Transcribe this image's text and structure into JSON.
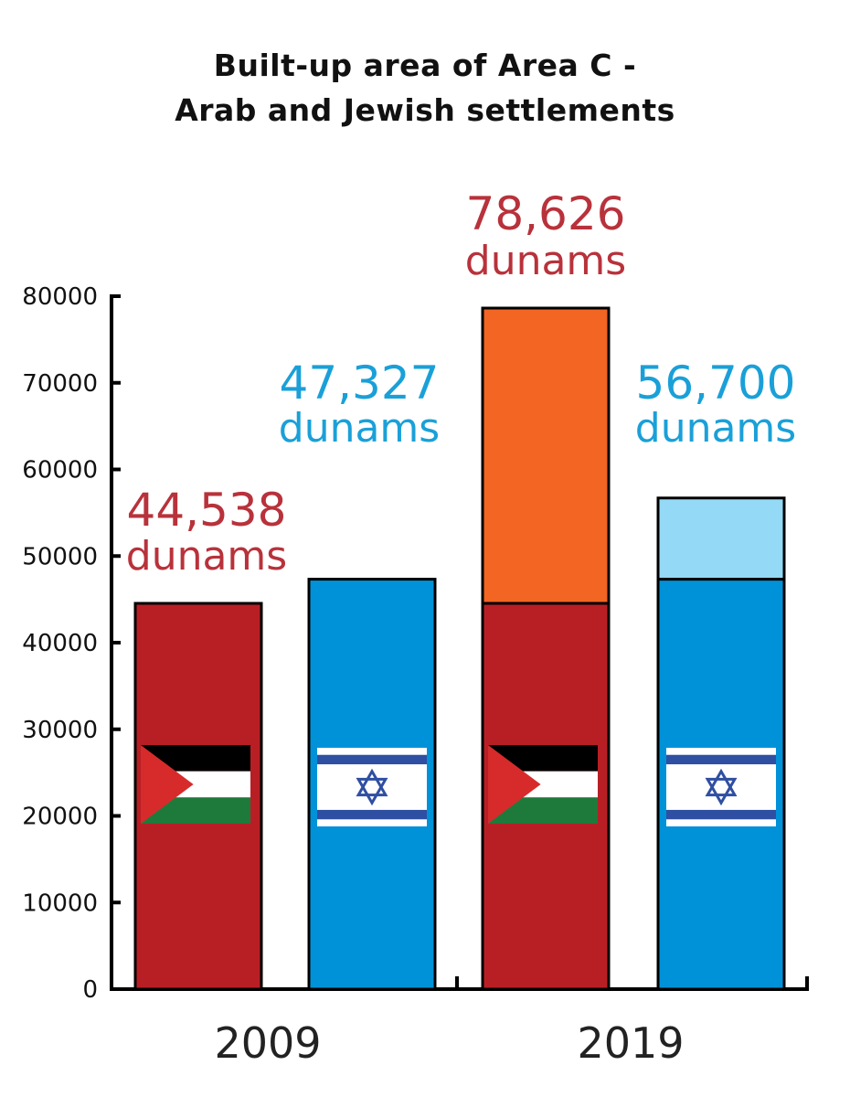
{
  "chart_data": {
    "type": "bar",
    "title_lines": [
      "Built-up area of Area C -",
      "Arab and Jewish settlements"
    ],
    "xlabel": "",
    "ylabel": "",
    "ylim": [
      0,
      80000
    ],
    "yticks": [
      0,
      10000,
      20000,
      30000,
      40000,
      50000,
      60000,
      70000,
      80000
    ],
    "ytick_labels": [
      "0",
      "10000",
      "20000",
      "30000",
      "40000",
      "50000",
      "60000",
      "70000",
      "80000"
    ],
    "categories": [
      "2009",
      "2019"
    ],
    "unit": "dunams",
    "bars": [
      {
        "group": "2009",
        "segments": [
          {
            "value": 44538,
            "color": "#b81f25"
          }
        ],
        "total": 44538,
        "value_label": "44,538",
        "label_color": "#b8323b",
        "flag": "palestine"
      },
      {
        "group": "2009",
        "segments": [
          {
            "value": 47327,
            "color": "#0092d8"
          }
        ],
        "total": 47327,
        "value_label": "47,327",
        "label_color": "#1aa0d8",
        "flag": "israel"
      },
      {
        "group": "2019",
        "segments": [
          {
            "value": 44538,
            "color": "#b81f25"
          },
          {
            "value": 34088,
            "color": "#f26522"
          }
        ],
        "total": 78626,
        "value_label": "78,626",
        "label_color": "#b8323b",
        "flag": "palestine"
      },
      {
        "group": "2019",
        "segments": [
          {
            "value": 47327,
            "color": "#0092d8"
          },
          {
            "value": 9373,
            "color": "#94d9f5"
          }
        ],
        "total": 56700,
        "value_label": "56,700",
        "label_color": "#1aa0d8",
        "flag": "israel"
      }
    ],
    "grid": false
  }
}
